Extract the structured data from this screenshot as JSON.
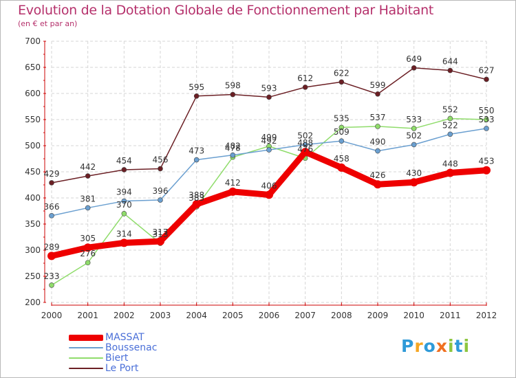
{
  "title": "Evolution de la Dotation Globale de Fonctionnement par Habitant",
  "subtitle": "(en € et par an)",
  "chart_data": {
    "type": "line",
    "x": [
      "2000",
      "2001",
      "2002",
      "2003",
      "2004",
      "2005",
      "2006",
      "2007",
      "2008",
      "2009",
      "2010",
      "2011",
      "2012"
    ],
    "ylim": [
      200,
      700
    ],
    "yticks": [
      "200",
      "250",
      "300",
      "350",
      "400",
      "450",
      "500",
      "550",
      "600",
      "650",
      "700"
    ],
    "series": [
      {
        "name": "Le Port",
        "color": "#6b1f24",
        "values": [
          429,
          442,
          454,
          456,
          595,
          598,
          593,
          612,
          622,
          599,
          649,
          644,
          627
        ]
      },
      {
        "name": "Biert",
        "color": "#8fdc6a",
        "values": [
          233,
          276,
          370,
          313,
          383,
          478,
          499,
          476,
          535,
          537,
          533,
          552,
          550
        ]
      },
      {
        "name": "Boussenac",
        "color": "#6a9fd0",
        "values": [
          366,
          381,
          394,
          396,
          473,
          482,
          492,
          502,
          509,
          490,
          502,
          522,
          533
        ]
      },
      {
        "name": "MASSAT",
        "color": "#ee0000",
        "values": [
          289,
          305,
          314,
          317,
          388,
          412,
          406,
          488,
          458,
          426,
          430,
          448,
          453
        ]
      }
    ],
    "data_labels": [
      {
        "series": "Le Port",
        "labels": [
          "429",
          "442",
          "454",
          "456",
          "595",
          "598",
          "593",
          "612",
          "622",
          "599",
          "649",
          "644",
          "627"
        ]
      },
      {
        "series": "Biert",
        "labels": [
          "233",
          "276",
          "370",
          "313",
          "383",
          "478",
          "499",
          "476",
          "535",
          "537",
          "533",
          "552",
          "550"
        ]
      },
      {
        "series": "Boussenac",
        "labels": [
          "366",
          "381",
          "394",
          "396",
          "473",
          "482",
          "492",
          "502",
          "509",
          "490",
          "502",
          "522",
          "533"
        ]
      },
      {
        "series": "MASSAT",
        "labels": [
          "289",
          "305",
          "314",
          "317",
          "388",
          "412",
          "406",
          "488",
          "458",
          "426",
          "430",
          "448",
          "453"
        ]
      }
    ],
    "legend": [
      {
        "name": "MASSAT",
        "color": "#ee0000"
      },
      {
        "name": "Boussenac",
        "color": "#6a9fd0"
      },
      {
        "name": "Biert",
        "color": "#8fdc6a"
      },
      {
        "name": "Le Port",
        "color": "#6b1f24"
      }
    ],
    "grid": true
  },
  "logo": {
    "letters": [
      {
        "ch": "P",
        "color": "#2f9ad8"
      },
      {
        "ch": "r",
        "color": "#f5a623"
      },
      {
        "ch": "o",
        "color": "#2f9ad8"
      },
      {
        "ch": "x",
        "color": "#f07020"
      },
      {
        "ch": "i",
        "color": "#8dc63f"
      },
      {
        "ch": "t",
        "color": "#2f9ad8"
      },
      {
        "ch": "i",
        "color": "#8dc63f"
      }
    ]
  }
}
